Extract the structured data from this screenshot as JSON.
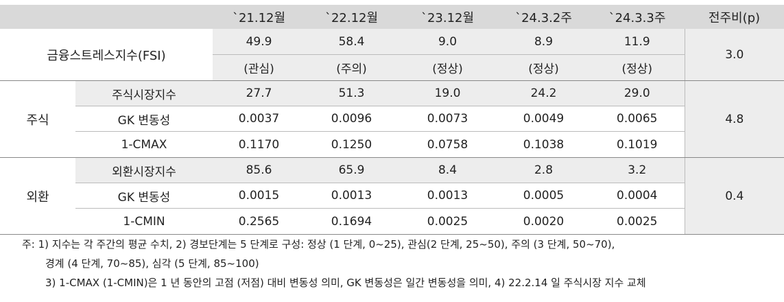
{
  "header": {
    "blank": "",
    "columns": [
      "`21.12월",
      "`22.12월",
      "`23.12월",
      "`24.3.2주",
      "`24.3.3주",
      "전주비(p)"
    ]
  },
  "fsi": {
    "label": "금융스트레스지수(FSI)",
    "values": [
      "49.9",
      "58.4",
      "9.0",
      "8.9",
      "11.9"
    ],
    "statuses": [
      "(관심)",
      "(주의)",
      "(정상)",
      "(정상)",
      "(정상)"
    ],
    "change": "3.0"
  },
  "stock": {
    "group": "주식",
    "change": "4.8",
    "rows": [
      {
        "label": "주식시장지수",
        "values": [
          "27.7",
          "51.3",
          "19.0",
          "24.2",
          "29.0"
        ]
      },
      {
        "label": "GK 변동성",
        "values": [
          "0.0037",
          "0.0096",
          "0.0073",
          "0.0049",
          "0.0065"
        ]
      },
      {
        "label": "1-CMAX",
        "values": [
          "0.1170",
          "0.1250",
          "0.0758",
          "0.1038",
          "0.1019"
        ]
      }
    ]
  },
  "fx": {
    "group": "외환",
    "change": "0.4",
    "rows": [
      {
        "label": "외환시장지수",
        "values": [
          "85.6",
          "65.9",
          "8.4",
          "2.8",
          "3.2"
        ]
      },
      {
        "label": "GK 변동성",
        "values": [
          "0.0015",
          "0.0013",
          "0.0013",
          "0.0005",
          "0.0004"
        ]
      },
      {
        "label": "1-CMIN",
        "values": [
          "0.2565",
          "0.1694",
          "0.0025",
          "0.0020",
          "0.0025"
        ]
      }
    ]
  },
  "notes": {
    "line1": "주: 1) 지수는 각 주간의 평균 수치, 2) 경보단계는 5 단계로 구성: 정상 (1 단계, 0~25), 관심(2 단계, 25~50), 주의 (3 단계, 50~70),",
    "line2": "경계 (4 단계, 70~85), 심각 (5 단계, 85~100)",
    "line3": "3) 1-CMAX (1-CMIN)은 1 년 동안의 고점 (저점) 대비 변동성 의미, GK 변동성은 일간 변동성을 의미, 4) 22.2.14 일 주식시장 지수 교체"
  }
}
